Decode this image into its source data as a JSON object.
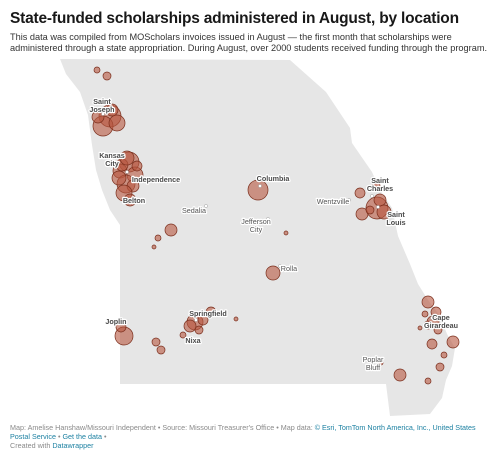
{
  "title": "State-funded scholarships administered in August, by location",
  "description": "This data was compiled from MOScholars invoices issued in August — the first month that scholarships were administered through a state appropriation. During August, over 2000 students received funding through the program.",
  "map": {
    "region": "Missouri",
    "land_color": "#e6e6e6",
    "bubble_color": "#b8563f",
    "city_labels": [
      {
        "key": "saint_joseph",
        "text": "Saint\nJoseph",
        "major": true
      },
      {
        "key": "kansas_city",
        "text": "Kansas\nCity",
        "major": true
      },
      {
        "key": "independence",
        "text": "Independence",
        "major": true
      },
      {
        "key": "belton",
        "text": "Belton",
        "major": true
      },
      {
        "key": "columbia",
        "text": "Columbia",
        "major": true
      },
      {
        "key": "sedalia",
        "text": "Sedalia",
        "major": false
      },
      {
        "key": "jefferson_city",
        "text": "Jefferson\nCity",
        "major": false
      },
      {
        "key": "wentzville",
        "text": "Wentzville",
        "major": false
      },
      {
        "key": "saint_charles",
        "text": "Saint\nCharles",
        "major": true
      },
      {
        "key": "saint_louis",
        "text": "Saint\nLouis",
        "major": true
      },
      {
        "key": "rolla",
        "text": "Rolla",
        "major": false
      },
      {
        "key": "joplin",
        "text": "Joplin",
        "major": true
      },
      {
        "key": "springfield",
        "text": "Springfield",
        "major": true
      },
      {
        "key": "nixa",
        "text": "Nixa",
        "major": true
      },
      {
        "key": "cape_girardeau",
        "text": "Cape\nGirardeau",
        "major": true
      },
      {
        "key": "poplar_bluff",
        "text": "Poplar\nBluff",
        "major": false
      }
    ]
  },
  "footer": {
    "credit": "Map: Amelise Hanshaw/Missouri Independent • Source: Missouri Treasurer's Office • Map data: ",
    "link1": "© Esri, TomTom North America, Inc., United States Postal Service",
    "sep": " • ",
    "link2": "Get the data",
    "sep2": " •",
    "created": "Created with ",
    "link3": "Datawrapper"
  }
}
